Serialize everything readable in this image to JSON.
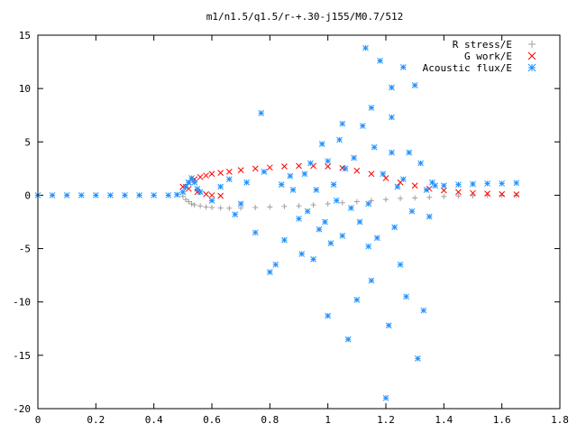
{
  "chart_data": {
    "type": "scatter",
    "title": "m1/n1.5/q1.5/r-+.30-j155/M0.7/512",
    "xlabel": "",
    "ylabel": "",
    "xlim": [
      0,
      1.8
    ],
    "ylim": [
      -20,
      15
    ],
    "x_ticks": [
      "0",
      "0.2",
      "0.4",
      "0.6",
      "0.8",
      "1",
      "1.2",
      "1.4",
      "1.6",
      "1.8"
    ],
    "y_ticks": [
      "15",
      "10",
      "5",
      "0",
      "-5",
      "-10",
      "-15",
      "-20"
    ],
    "legend_position": "top-right",
    "series": [
      {
        "name": "R stress/E",
        "marker": "plus",
        "color": "#a0a0a0",
        "points": [
          [
            0.5,
            -0.1
          ],
          [
            0.51,
            -0.4
          ],
          [
            0.52,
            -0.6
          ],
          [
            0.53,
            -0.8
          ],
          [
            0.54,
            -0.9
          ],
          [
            0.56,
            -1.0
          ],
          [
            0.58,
            -1.1
          ],
          [
            0.6,
            -1.15
          ],
          [
            0.63,
            -1.2
          ],
          [
            0.66,
            -1.22
          ],
          [
            0.7,
            -1.2
          ],
          [
            0.75,
            -1.15
          ],
          [
            0.8,
            -1.1
          ],
          [
            0.85,
            -1.05
          ],
          [
            0.9,
            -1.0
          ],
          [
            0.95,
            -0.9
          ],
          [
            1.0,
            -0.8
          ],
          [
            1.05,
            -0.7
          ],
          [
            1.1,
            -0.6
          ],
          [
            1.15,
            -0.5
          ],
          [
            1.2,
            -0.4
          ],
          [
            1.25,
            -0.3
          ],
          [
            1.3,
            -0.25
          ],
          [
            1.35,
            -0.2
          ],
          [
            1.4,
            -0.12
          ],
          [
            1.45,
            -0.07
          ],
          [
            1.5,
            -0.04
          ],
          [
            1.55,
            -0.02
          ],
          [
            1.6,
            -0.01
          ],
          [
            1.65,
            0.0
          ]
        ]
      },
      {
        "name": "G work/E",
        "marker": "cross",
        "color": "#ff0000",
        "points": [
          [
            0.5,
            0.8
          ],
          [
            0.52,
            1.2
          ],
          [
            0.54,
            1.5
          ],
          [
            0.56,
            1.7
          ],
          [
            0.58,
            1.85
          ],
          [
            0.6,
            2.0
          ],
          [
            0.63,
            2.1
          ],
          [
            0.66,
            2.2
          ],
          [
            0.7,
            2.35
          ],
          [
            0.75,
            2.5
          ],
          [
            0.8,
            2.6
          ],
          [
            0.85,
            2.7
          ],
          [
            0.9,
            2.75
          ],
          [
            0.95,
            2.75
          ],
          [
            1.0,
            2.7
          ],
          [
            1.05,
            2.55
          ],
          [
            1.1,
            2.3
          ],
          [
            1.15,
            2.0
          ],
          [
            1.2,
            1.6
          ],
          [
            1.25,
            1.2
          ],
          [
            1.3,
            0.9
          ],
          [
            1.35,
            0.6
          ],
          [
            1.4,
            0.45
          ],
          [
            1.45,
            0.3
          ],
          [
            1.5,
            0.2
          ],
          [
            1.55,
            0.15
          ],
          [
            1.6,
            0.1
          ],
          [
            1.65,
            0.08
          ],
          [
            0.52,
            0.6
          ],
          [
            0.55,
            0.3
          ],
          [
            0.58,
            0.1
          ],
          [
            0.6,
            0.0
          ],
          [
            0.63,
            -0.05
          ]
        ]
      },
      {
        "name": "Acoustic flux/E",
        "marker": "star",
        "color": "#1e90ff",
        "points": [
          [
            0.0,
            0.0
          ],
          [
            0.05,
            0.0
          ],
          [
            0.1,
            0.0
          ],
          [
            0.15,
            0.0
          ],
          [
            0.2,
            0.0
          ],
          [
            0.25,
            0.0
          ],
          [
            0.3,
            0.0
          ],
          [
            0.35,
            0.0
          ],
          [
            0.4,
            0.0
          ],
          [
            0.45,
            0.0
          ],
          [
            0.48,
            0.05
          ],
          [
            0.5,
            0.3
          ],
          [
            0.51,
            0.8
          ],
          [
            0.52,
            1.2
          ],
          [
            0.53,
            1.6
          ],
          [
            0.54,
            1.2
          ],
          [
            0.55,
            0.6
          ],
          [
            0.56,
            0.3
          ],
          [
            0.6,
            -0.5
          ],
          [
            0.63,
            0.8
          ],
          [
            0.66,
            1.5
          ],
          [
            0.68,
            -1.8
          ],
          [
            0.7,
            -0.8
          ],
          [
            0.72,
            1.2
          ],
          [
            0.75,
            -3.5
          ],
          [
            0.78,
            2.2
          ],
          [
            0.8,
            -7.2
          ],
          [
            0.82,
            -6.5
          ],
          [
            0.84,
            1.0
          ],
          [
            0.85,
            -4.2
          ],
          [
            0.87,
            1.8
          ],
          [
            0.88,
            0.5
          ],
          [
            0.9,
            -2.2
          ],
          [
            0.91,
            -5.5
          ],
          [
            0.92,
            2.0
          ],
          [
            0.93,
            -1.5
          ],
          [
            0.94,
            3.0
          ],
          [
            0.95,
            -6.0
          ],
          [
            0.96,
            0.5
          ],
          [
            0.97,
            -3.2
          ],
          [
            0.98,
            4.8
          ],
          [
            0.99,
            -2.5
          ],
          [
            1.0,
            -11.3
          ],
          [
            1.01,
            -4.5
          ],
          [
            1.02,
            1.0
          ],
          [
            1.03,
            -0.5
          ],
          [
            1.04,
            5.2
          ],
          [
            1.05,
            -3.8
          ],
          [
            1.06,
            2.5
          ],
          [
            1.07,
            -13.5
          ],
          [
            1.08,
            -1.2
          ],
          [
            1.09,
            3.5
          ],
          [
            1.1,
            -9.8
          ],
          [
            1.11,
            -2.5
          ],
          [
            1.12,
            6.5
          ],
          [
            1.13,
            13.8
          ],
          [
            1.14,
            -0.8
          ],
          [
            1.15,
            -8.0
          ],
          [
            1.16,
            4.5
          ],
          [
            1.17,
            -4.0
          ],
          [
            1.18,
            12.6
          ],
          [
            1.19,
            2.0
          ],
          [
            1.2,
            -19.0
          ],
          [
            1.21,
            -12.2
          ],
          [
            1.22,
            7.3
          ],
          [
            1.23,
            -3.0
          ],
          [
            1.24,
            0.8
          ],
          [
            1.25,
            -6.5
          ],
          [
            1.26,
            1.5
          ],
          [
            1.27,
            -9.5
          ],
          [
            1.28,
            4.0
          ],
          [
            1.29,
            -1.5
          ],
          [
            1.3,
            10.3
          ],
          [
            1.31,
            -15.3
          ],
          [
            1.32,
            3.0
          ],
          [
            1.33,
            -10.8
          ],
          [
            1.34,
            0.5
          ],
          [
            1.35,
            -2.0
          ],
          [
            1.36,
            1.2
          ],
          [
            1.37,
            0.9
          ],
          [
            1.4,
            0.9
          ],
          [
            1.45,
            1.0
          ],
          [
            1.5,
            1.05
          ],
          [
            1.55,
            1.1
          ],
          [
            1.6,
            1.1
          ],
          [
            1.65,
            1.15
          ],
          [
            0.77,
            7.7
          ],
          [
            1.0,
            3.2
          ],
          [
            1.05,
            6.7
          ],
          [
            1.15,
            8.2
          ],
          [
            1.22,
            4.0
          ],
          [
            1.26,
            12.0
          ],
          [
            1.22,
            10.1
          ],
          [
            1.14,
            -4.8
          ]
        ]
      }
    ]
  }
}
